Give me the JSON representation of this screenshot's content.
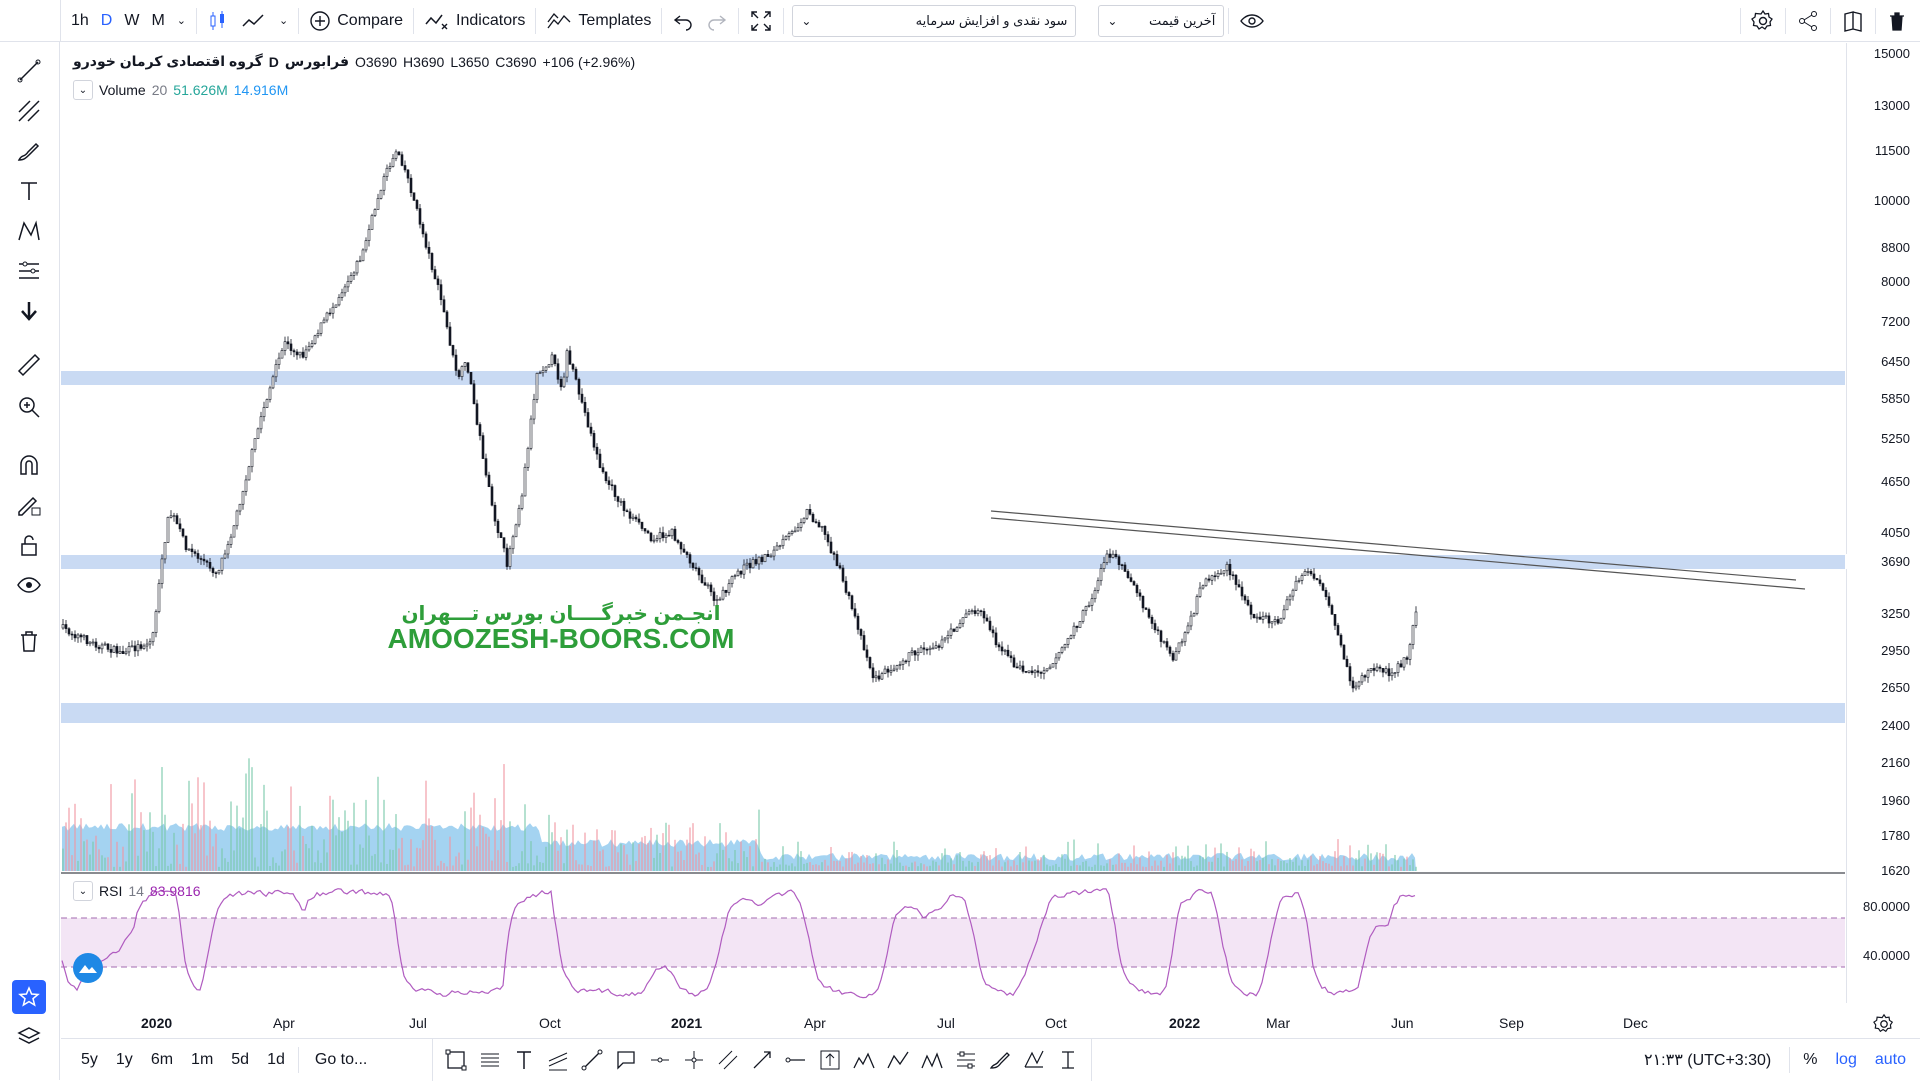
{
  "topbar": {
    "intervals": [
      "1h",
      "D",
      "W",
      "M"
    ],
    "active_interval": "D",
    "compare_label": "Compare",
    "indicators_label": "Indicators",
    "templates_label": "Templates",
    "study_dropdown": "سود نقدی و افزایش سرمایه",
    "price_dropdown": "آخرین قیمت"
  },
  "legend": {
    "symbol_name": "گروه اقتصادی کرمان خودرو",
    "interval": "D",
    "exchange": "فرابورس",
    "open": "O3690",
    "high": "H3690",
    "low": "L3650",
    "close": "C3690",
    "change": "+106 (+2.96%)",
    "volume_label": "Volume",
    "volume_period": "20",
    "volume_value1": "51.626M",
    "volume_value2": "14.916M"
  },
  "rsi": {
    "label": "RSI",
    "period": "14",
    "value": "83.9816",
    "levels": [
      "80.0000",
      "40.0000"
    ]
  },
  "watermark": {
    "line1": "انجـمن خبرگــــان بورس تـــهران",
    "line2": "AMOOZESH-BOORS.COM"
  },
  "price_axis": {
    "labels": [
      "15000",
      "13000",
      "11500",
      "10000",
      "8800",
      "8000",
      "7200",
      "6450",
      "5850",
      "5250",
      "4650",
      "4050",
      "3690",
      "3250",
      "2950",
      "2650",
      "2400",
      "2160",
      "1960",
      "1780",
      "1620"
    ],
    "current": "3690"
  },
  "time_axis": {
    "labels": [
      "2020",
      "Apr",
      "Jul",
      "Oct",
      "2021",
      "Apr",
      "Jul",
      "Oct",
      "2022",
      "Mar",
      "Jun",
      "Sep",
      "Dec"
    ]
  },
  "bottombar": {
    "ranges": [
      "5y",
      "1y",
      "6m",
      "1m",
      "5d",
      "1d"
    ],
    "goto_label": "Go to...",
    "time": "۲۱:۳۳ (UTC+3:30)",
    "percent_label": "%",
    "log_label": "log",
    "auto_label": "auto"
  },
  "colors": {
    "accent": "#2962ff",
    "zone": "#c9daf3",
    "volume_area": "#7fc4ee",
    "rsi_line": "#9c27b0",
    "rsi_band": "#f3e5f5",
    "watermark": "#2e9e3a"
  }
}
